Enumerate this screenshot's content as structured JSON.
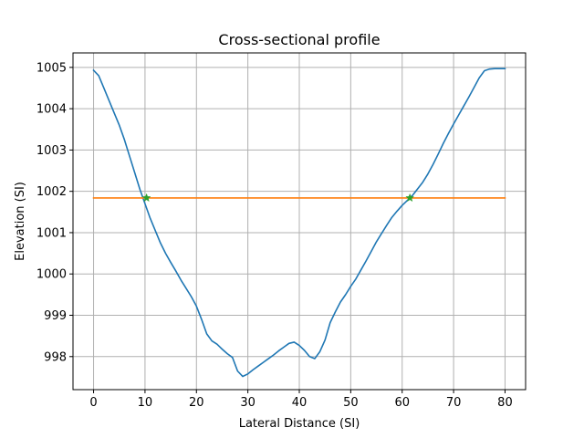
{
  "chart_data": {
    "type": "line",
    "title": "Cross-sectional profile",
    "xlabel": "Lateral Distance (SI)",
    "ylabel": "Elevation (SI)",
    "xlim": [
      -4,
      84
    ],
    "ylim": [
      997.2,
      1005.35
    ],
    "xticks": [
      0,
      10,
      20,
      30,
      40,
      50,
      60,
      70,
      80
    ],
    "yticks": [
      998,
      999,
      1000,
      1001,
      1002,
      1003,
      1004,
      1005
    ],
    "grid": true,
    "legend": "none",
    "series": [
      {
        "color": "#1f77b4",
        "x": [
          0,
          1,
          2,
          3,
          4,
          5,
          6,
          7,
          8,
          9,
          10,
          11,
          12,
          13,
          14,
          15,
          16,
          17,
          18,
          19,
          20,
          21,
          22,
          23,
          24,
          25,
          26,
          27,
          28,
          29,
          30,
          31,
          32,
          33,
          34,
          35,
          36,
          37,
          38,
          39,
          40,
          41,
          42,
          43,
          44,
          45,
          46,
          47,
          48,
          49,
          50,
          51,
          52,
          53,
          54,
          55,
          56,
          57,
          58,
          59,
          60,
          61,
          62,
          63,
          64,
          65,
          66,
          67,
          68,
          69,
          70,
          71,
          72,
          73,
          74,
          75,
          76,
          77,
          78,
          79,
          80
        ],
        "values": [
          1004.93,
          1004.8,
          1004.5,
          1004.2,
          1003.9,
          1003.6,
          1003.25,
          1002.85,
          1002.45,
          1002.05,
          1001.7,
          1001.35,
          1001.05,
          1000.75,
          1000.5,
          1000.28,
          1000.07,
          999.85,
          999.65,
          999.45,
          999.22,
          998.9,
          998.55,
          998.38,
          998.3,
          998.18,
          998.07,
          997.98,
          997.65,
          997.52,
          997.58,
          997.68,
          997.77,
          997.86,
          997.95,
          998.04,
          998.14,
          998.23,
          998.32,
          998.35,
          998.27,
          998.15,
          998.0,
          997.95,
          998.12,
          998.4,
          998.82,
          999.08,
          999.32,
          999.5,
          999.7,
          999.88,
          1000.1,
          1000.32,
          1000.55,
          1000.78,
          1000.98,
          1001.18,
          1001.37,
          1001.52,
          1001.66,
          1001.78,
          1001.9,
          1002.06,
          1002.22,
          1002.42,
          1002.65,
          1002.9,
          1003.16,
          1003.4,
          1003.63,
          1003.85,
          1004.07,
          1004.29,
          1004.52,
          1004.75,
          1004.92,
          1004.96,
          1004.97,
          1004.97,
          1004.97
        ]
      },
      {
        "color": "#ff7f0e",
        "x": [
          0,
          80
        ],
        "values": [
          1001.84,
          1001.84
        ]
      },
      {
        "color": "#2ca02c",
        "marker": "star",
        "x": [
          10.3,
          61.5
        ],
        "values": [
          1001.84,
          1001.84
        ]
      }
    ]
  }
}
